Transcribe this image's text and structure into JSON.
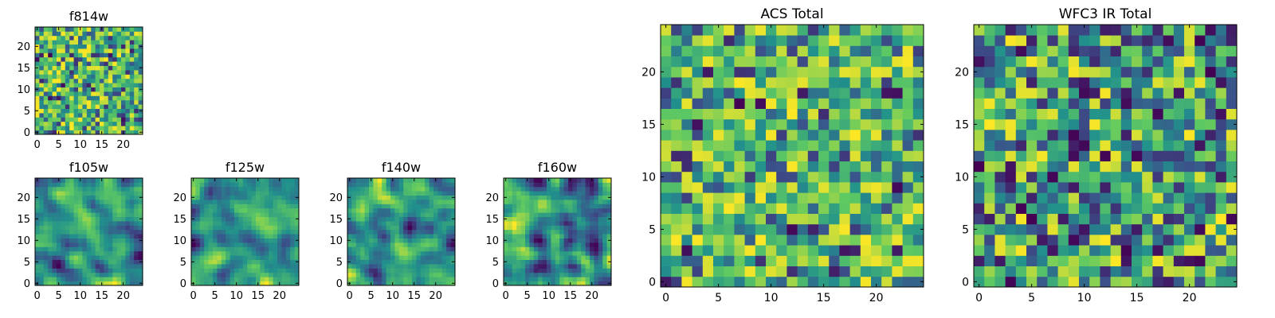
{
  "figure": {
    "background": "#ffffff",
    "colormap": "viridis",
    "colormap_stops": [
      "#440154",
      "#3b528b",
      "#21918c",
      "#5ec962",
      "#fde725"
    ]
  },
  "chart_data": [
    {
      "type": "heatmap",
      "name": "panel-f814w",
      "title": "f814w",
      "grid": [
        25,
        25
      ],
      "xlim": [
        -0.5,
        24.5
      ],
      "ylim": [
        -0.5,
        24.5
      ],
      "xticks": [
        0,
        5,
        10,
        15,
        20
      ],
      "yticks": [
        0,
        5,
        10,
        15,
        20
      ],
      "value_range": [
        0,
        1
      ],
      "seed": 814,
      "pattern": "fine noise, mostly green-yellow with scattered dark purple cells"
    },
    {
      "type": "heatmap",
      "name": "panel-f105w",
      "title": "f105w",
      "grid": [
        25,
        25
      ],
      "xlim": [
        -0.5,
        24.5
      ],
      "ylim": [
        -0.5,
        24.5
      ],
      "xticks": [
        0,
        5,
        10,
        15,
        20
      ],
      "yticks": [
        0,
        5,
        10,
        15,
        20
      ],
      "value_range": [
        0,
        1
      ],
      "seed": 105,
      "pattern": "smoothed noise, mostly green-yellow"
    },
    {
      "type": "heatmap",
      "name": "panel-f125w",
      "title": "f125w",
      "grid": [
        25,
        25
      ],
      "xlim": [
        -0.5,
        24.5
      ],
      "ylim": [
        -0.5,
        24.5
      ],
      "xticks": [
        0,
        5,
        10,
        15,
        20
      ],
      "yticks": [
        0,
        5,
        10,
        15,
        20
      ],
      "value_range": [
        0,
        1
      ],
      "seed": 125,
      "pattern": "smoothed noise, teal-green with blue patches"
    },
    {
      "type": "heatmap",
      "name": "panel-f140w",
      "title": "f140w",
      "grid": [
        25,
        25
      ],
      "xlim": [
        -0.5,
        24.5
      ],
      "ylim": [
        -0.5,
        24.5
      ],
      "xticks": [
        0,
        5,
        10,
        15,
        20
      ],
      "yticks": [
        0,
        5,
        10,
        15,
        20
      ],
      "value_range": [
        0,
        1
      ],
      "seed": 140,
      "pattern": "smoothed noise, green-yellow with blue patches"
    },
    {
      "type": "heatmap",
      "name": "panel-f160w",
      "title": "f160w",
      "grid": [
        25,
        25
      ],
      "xlim": [
        -0.5,
        24.5
      ],
      "ylim": [
        -0.5,
        24.5
      ],
      "xticks": [
        0,
        5,
        10,
        15,
        20
      ],
      "yticks": [
        0,
        5,
        10,
        15,
        20
      ],
      "value_range": [
        0,
        1
      ],
      "seed": 160,
      "pattern": "smoothed noise, green with dark corner at top-right"
    },
    {
      "type": "heatmap",
      "name": "panel-acs-total",
      "title": "ACS Total",
      "grid": [
        25,
        25
      ],
      "xlim": [
        -0.5,
        24.5
      ],
      "ylim": [
        -0.5,
        24.5
      ],
      "xticks": [
        0,
        5,
        10,
        15,
        20
      ],
      "yticks": [
        0,
        5,
        10,
        15,
        20
      ],
      "value_range": [
        0,
        1
      ],
      "seed": 7,
      "pattern": "pixelated noise, green-yellow with sparse dark purple cells"
    },
    {
      "type": "heatmap",
      "name": "panel-wfc3-ir-total",
      "title": "WFC3 IR Total",
      "grid": [
        25,
        25
      ],
      "xlim": [
        -0.5,
        24.5
      ],
      "ylim": [
        -0.5,
        24.5
      ],
      "xticks": [
        0,
        5,
        10,
        15,
        20
      ],
      "yticks": [
        0,
        5,
        10,
        15,
        20
      ],
      "value_range": [
        0,
        1
      ],
      "seed": 33,
      "pattern": "pixelated noise, teal-green with sparse dark purple cells"
    }
  ]
}
